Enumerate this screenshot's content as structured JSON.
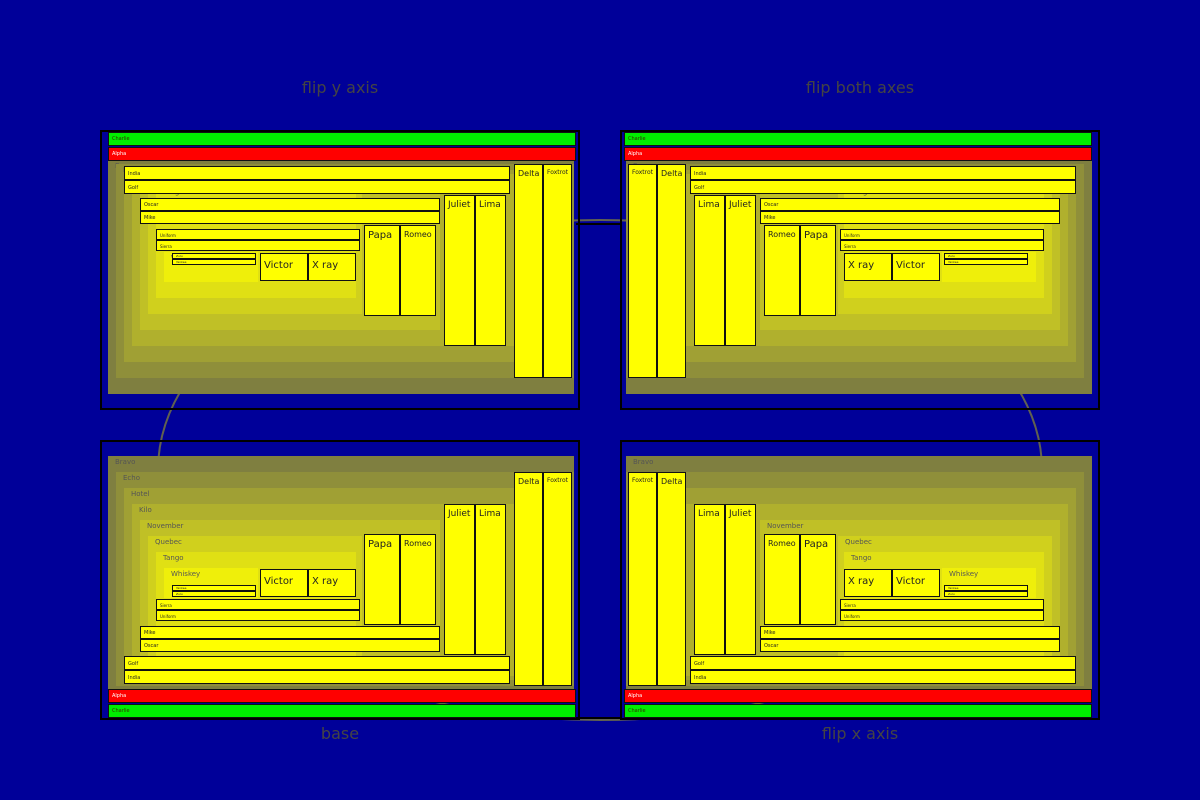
{
  "titles": {
    "top_left": "flip y axis",
    "top_right": "flip both axes",
    "bottom_left": "base",
    "bottom_right": "flip x axis"
  },
  "colors": {
    "background": "#000099",
    "leaf": "#ffff00",
    "alpha": "#ff0000",
    "charlie": "#00ee00",
    "bravo": "#7f7f40",
    "frame": "#000000"
  },
  "panels": [
    {
      "id": "top_left",
      "title_key": "top_left",
      "flip_x": false,
      "flip_y": true
    },
    {
      "id": "top_right",
      "title_key": "top_right",
      "flip_x": true,
      "flip_y": true
    },
    {
      "id": "bottom_left",
      "title_key": "bottom_left",
      "flip_x": false,
      "flip_y": false
    },
    {
      "id": "bottom_right",
      "title_key": "bottom_right",
      "flip_x": true,
      "flip_y": false
    }
  ],
  "labels": {
    "alpha": "Alpha",
    "bravo": "Bravo",
    "charlie": "Charlie",
    "delta": "Delta",
    "echo": "Echo",
    "foxtrot": "Foxtrot",
    "golf": "Golf",
    "hotel": "Hotel",
    "india": "India",
    "juliet": "Juliet",
    "kilo": "Kilo",
    "lima": "Lima",
    "mike": "Mike",
    "november": "November",
    "oscar": "Oscar",
    "papa": "Papa",
    "quebec": "Quebec",
    "romeo": "Romeo",
    "sierra": "Sierra",
    "tango": "Tango",
    "uniform": "Uniform",
    "victor": "Victor",
    "whiskey": "Whiskey",
    "xray": "X ray",
    "yankee": "Yankee",
    "zulu": "Zulu"
  }
}
